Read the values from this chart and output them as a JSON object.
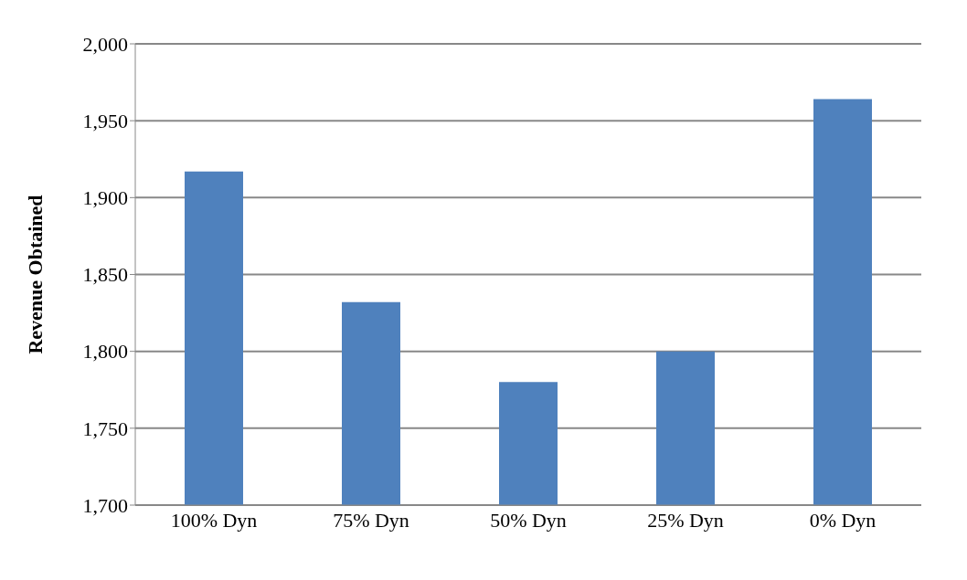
{
  "chart_data": {
    "type": "bar",
    "ylabel": "Revenue Obtained",
    "categories": [
      "100% Dyn",
      "75% Dyn",
      "50% Dyn",
      "25% Dyn",
      "0% Dyn"
    ],
    "values": [
      1917,
      1832,
      1780,
      1800,
      1964
    ],
    "color": "#4f81bd",
    "ylim": [
      1700,
      2000
    ],
    "yticks": [
      {
        "value": 1700,
        "label": "1,700"
      },
      {
        "value": 1750,
        "label": "1,750"
      },
      {
        "value": 1800,
        "label": "1,800"
      },
      {
        "value": 1850,
        "label": "1,850"
      },
      {
        "value": 1900,
        "label": "1,900"
      },
      {
        "value": 1950,
        "label": "1,950"
      },
      {
        "value": 2000,
        "label": "2,000"
      }
    ],
    "grid": "y"
  }
}
